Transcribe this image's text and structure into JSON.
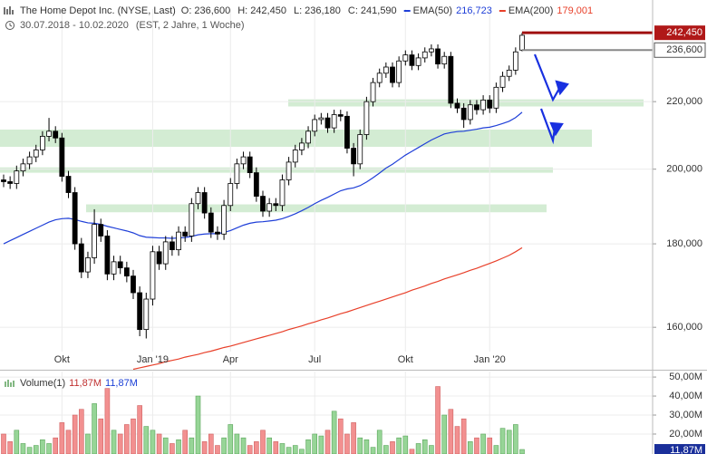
{
  "chart_data": {
    "type": "candlestick",
    "title": "The Home Depot Inc. (NYSE, Last)",
    "date_range": "30.07.2018 - 10.02.2020",
    "subtitle": "(EST, 2 Jahre, 1 Woche)",
    "categories": [
      null,
      null,
      null,
      null,
      null,
      null,
      null,
      null,
      null,
      "Okt",
      null,
      null,
      null,
      null,
      null,
      null,
      null,
      null,
      null,
      null,
      null,
      null,
      null,
      "Jan '19",
      null,
      null,
      null,
      null,
      null,
      null,
      null,
      null,
      null,
      null,
      null,
      "Apr",
      null,
      null,
      null,
      null,
      null,
      null,
      null,
      null,
      null,
      null,
      null,
      null,
      "Jul",
      null,
      null,
      null,
      null,
      null,
      null,
      null,
      null,
      null,
      null,
      null,
      null,
      null,
      "Okt",
      null,
      null,
      null,
      null,
      null,
      null,
      null,
      null,
      null,
      null,
      null,
      null,
      "Jan '20",
      null,
      null,
      null,
      null,
      null
    ],
    "open": [
      197000,
      196500,
      196000,
      199500,
      201500,
      203500,
      205500,
      209500,
      211000,
      209000,
      198000,
      193500,
      180000,
      173000,
      176500,
      185000,
      182000,
      172500,
      175500,
      174000,
      172000,
      168000,
      159500,
      166500,
      178000,
      175000,
      180500,
      178500,
      183000,
      182000,
      190500,
      193500,
      188000,
      183000,
      182500,
      190000,
      196000,
      201500,
      203500,
      199000,
      192500,
      188500,
      190500,
      190000,
      197000,
      202000,
      205500,
      207500,
      211000,
      214500,
      215000,
      212000,
      216000,
      215500,
      206000,
      201500,
      210000,
      220000,
      226000,
      229000,
      231000,
      226000,
      233000,
      235000,
      231500,
      234000,
      236000,
      237000,
      232000,
      234500,
      219500,
      218000,
      214500,
      219000,
      217500,
      220500,
      218000,
      224500,
      228000,
      230000,
      236600
    ],
    "high": [
      198500,
      198000,
      201000,
      203000,
      205000,
      207000,
      211000,
      215000,
      212500,
      210500,
      199500,
      195000,
      181500,
      178000,
      189000,
      186500,
      183500,
      177000,
      177000,
      175500,
      173500,
      169500,
      168000,
      179500,
      179500,
      182000,
      182000,
      184500,
      184500,
      192000,
      195000,
      195000,
      189500,
      184500,
      191500,
      197500,
      203000,
      205000,
      205000,
      200500,
      194000,
      192000,
      192000,
      198500,
      203500,
      207000,
      209000,
      212500,
      216000,
      216500,
      216500,
      217500,
      217500,
      217000,
      207500,
      211500,
      221500,
      227500,
      230500,
      232500,
      232500,
      234500,
      236500,
      236500,
      235500,
      237500,
      238500,
      238500,
      236000,
      236000,
      221000,
      219500,
      220500,
      220500,
      222000,
      222000,
      226000,
      229500,
      231500,
      237500,
      242450
    ],
    "low": [
      195000,
      194500,
      194500,
      198000,
      200000,
      202000,
      204000,
      208000,
      207500,
      196500,
      192000,
      178500,
      171500,
      171500,
      175000,
      180500,
      171000,
      171000,
      172500,
      170500,
      166500,
      158000,
      157500,
      165000,
      173500,
      173500,
      177000,
      177000,
      180500,
      180500,
      189000,
      186500,
      181500,
      181000,
      181000,
      188500,
      194500,
      200000,
      197500,
      191000,
      187000,
      187000,
      188500,
      188500,
      195500,
      200500,
      204000,
      206000,
      209500,
      213000,
      210500,
      210500,
      214000,
      204500,
      198000,
      200000,
      208500,
      218500,
      224500,
      227500,
      224500,
      224500,
      231500,
      230000,
      230000,
      232500,
      234500,
      230500,
      230500,
      218000,
      216500,
      212000,
      213000,
      216000,
      216000,
      216500,
      216500,
      223000,
      226500,
      228500,
      236180
    ],
    "close": [
      196500,
      196000,
      199500,
      201500,
      203500,
      205500,
      209500,
      211000,
      209000,
      198000,
      193500,
      180000,
      173000,
      176500,
      185000,
      182000,
      172500,
      175500,
      174000,
      172000,
      168000,
      159500,
      166500,
      178000,
      175000,
      180500,
      178500,
      183000,
      182000,
      190500,
      193500,
      188000,
      183000,
      182500,
      190000,
      196000,
      201500,
      203500,
      199000,
      192500,
      188500,
      190500,
      190000,
      197000,
      202000,
      205500,
      207500,
      211000,
      214500,
      215000,
      212000,
      216000,
      215500,
      206000,
      201500,
      210000,
      220000,
      226000,
      229000,
      231000,
      226000,
      233000,
      235000,
      231500,
      234000,
      236000,
      237000,
      232000,
      234500,
      219500,
      218000,
      214500,
      219000,
      217500,
      220500,
      218000,
      224500,
      228000,
      230000,
      236000,
      241590
    ],
    "ohlc_names": [
      "O:",
      "H:",
      "L:",
      "C:"
    ],
    "ohlc_value_labels": [
      "236,600",
      "242,450",
      "236,180",
      "241,590"
    ],
    "up_color": "#ffffff",
    "down_color": "#000000",
    "series": [
      {
        "name": "EMA(50)",
        "color": "#1f3fd8",
        "last_value_label": "216,723",
        "values": [
          180000,
          180800,
          181600,
          182400,
          183200,
          184000,
          184800,
          185600,
          186200,
          186500,
          186600,
          186300,
          185800,
          185400,
          185300,
          185000,
          184500,
          184100,
          183700,
          183300,
          182800,
          182100,
          181700,
          181600,
          181500,
          181500,
          181400,
          181500,
          181600,
          181900,
          182300,
          182500,
          182600,
          182600,
          182900,
          183400,
          184100,
          184800,
          185300,
          185600,
          185700,
          185900,
          186100,
          186500,
          187100,
          187800,
          188600,
          189500,
          190500,
          191400,
          192200,
          193100,
          194000,
          194500,
          194800,
          195400,
          196400,
          197600,
          198900,
          200300,
          201400,
          202700,
          204000,
          205100,
          206200,
          207300,
          208400,
          209300,
          210200,
          210600,
          210900,
          211000,
          211300,
          211600,
          212000,
          212200,
          212700,
          213300,
          214000,
          215100,
          216723
        ]
      },
      {
        "name": "EMA(200)",
        "color": "#e8402a",
        "last_value_label": "179,001",
        "values": [
          null,
          null,
          null,
          null,
          null,
          null,
          null,
          null,
          null,
          null,
          null,
          null,
          null,
          null,
          null,
          null,
          null,
          null,
          null,
          null,
          150800,
          151100,
          151400,
          151700,
          152000,
          152400,
          152700,
          153000,
          153400,
          153700,
          154000,
          154400,
          154700,
          155100,
          155500,
          155800,
          156200,
          156600,
          157000,
          157400,
          157800,
          158200,
          158600,
          159000,
          159500,
          159900,
          160300,
          160800,
          161200,
          161700,
          162100,
          162600,
          163100,
          163500,
          164000,
          164500,
          165000,
          165500,
          166000,
          166500,
          167000,
          167500,
          168000,
          168600,
          169100,
          169600,
          170200,
          170700,
          171300,
          171800,
          172300,
          172800,
          173400,
          173900,
          174500,
          175100,
          175700,
          176400,
          177100,
          178000,
          179001
        ]
      }
    ],
    "log_scale": true,
    "ylim": [
      150700,
      250700
    ],
    "yticks": [
      {
        "value": 160000,
        "label": "160,000"
      },
      {
        "value": 180000,
        "label": "180,000"
      },
      {
        "value": 200000,
        "label": "200,000"
      },
      {
        "value": 220000,
        "label": "220,000"
      }
    ],
    "grid": true,
    "zones": [
      {
        "from": 218500,
        "to": 220700,
        "color": "#d3ecd3"
      },
      {
        "from": 206400,
        "to": 211500,
        "color": "#d3ecd3"
      },
      {
        "from": 199000,
        "to": 200500,
        "color": "#d3ecd3"
      },
      {
        "from": 188200,
        "to": 190300,
        "color": "#d3ecd3"
      }
    ],
    "volume": {
      "name": "Volume(1)",
      "last_value_label": "11,87M",
      "up_color": "#97d597",
      "down_color": "#f29090",
      "ylim": [
        9500000,
        52900000
      ],
      "yticks": [
        {
          "value": 50000000,
          "label": "50,00M"
        },
        {
          "value": 40000000,
          "label": "40,00M"
        },
        {
          "value": 30000000,
          "label": "30,00M"
        },
        {
          "value": 20000000,
          "label": "20,00M"
        }
      ],
      "values": [
        20000000,
        16000000,
        22000000,
        15000000,
        13000000,
        14000000,
        17000000,
        15000000,
        18000000,
        26000000,
        22000000,
        30000000,
        33000000,
        20000000,
        36000000,
        28000000,
        44000000,
        22000000,
        20000000,
        25000000,
        28000000,
        35000000,
        24000000,
        22000000,
        20000000,
        18000000,
        15000000,
        17000000,
        22000000,
        18000000,
        40000000,
        16000000,
        20000000,
        14000000,
        18000000,
        25000000,
        20000000,
        18000000,
        14000000,
        16000000,
        22000000,
        18000000,
        16000000,
        15000000,
        13000000,
        14000000,
        12000000,
        17000000,
        20000000,
        19000000,
        22000000,
        32000000,
        28000000,
        20000000,
        26000000,
        18000000,
        17000000,
        13000000,
        22000000,
        14000000,
        16000000,
        18000000,
        19000000,
        12000000,
        15000000,
        17000000,
        14000000,
        45000000,
        30000000,
        33000000,
        24000000,
        28000000,
        16000000,
        18000000,
        20000000,
        18000000,
        14000000,
        23000000,
        22000000,
        25000000,
        11870000
      ]
    }
  }
}
